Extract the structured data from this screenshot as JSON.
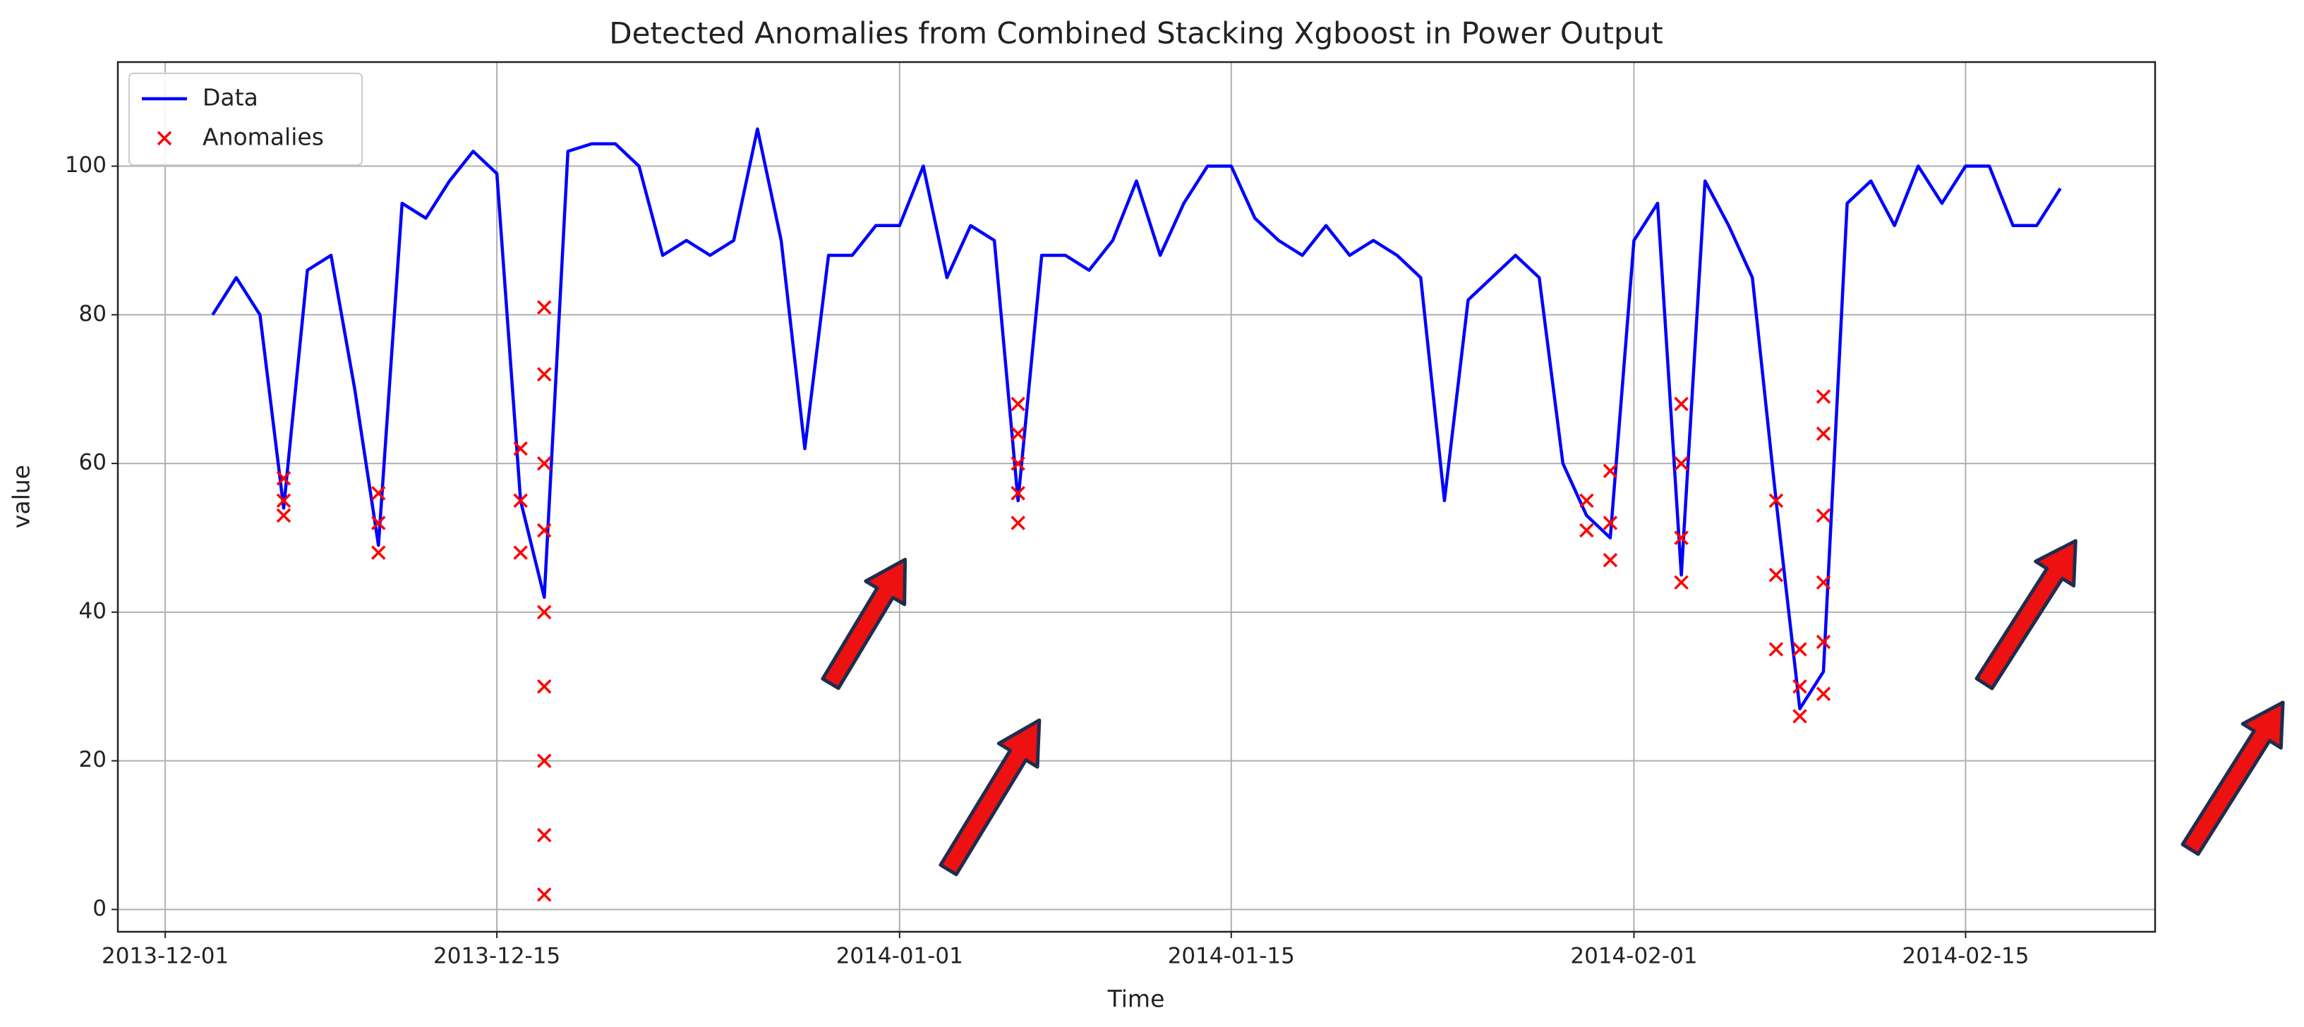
{
  "chart_data": {
    "type": "line",
    "title": "Detected Anomalies from Combined Stacking Xgboost in Power Output",
    "x_label": "Time",
    "y_label": "value",
    "xlim": [
      "2013-11-29",
      "2014-02-23"
    ],
    "xticks": [
      "2013-12-01",
      "2013-12-15",
      "2014-01-01",
      "2014-01-15",
      "2014-02-01",
      "2014-02-15"
    ],
    "ylim": [
      -3,
      114
    ],
    "yticks": [
      0,
      20,
      40,
      60,
      80,
      100
    ],
    "grid": true,
    "legend": "upper left",
    "series": [
      {
        "name": "Data",
        "type": "line",
        "color": "#0000ff",
        "x": [
          "2013-12-03",
          "2013-12-04",
          "2013-12-05",
          "2013-12-06",
          "2013-12-07",
          "2013-12-08",
          "2013-12-09",
          "2013-12-10",
          "2013-12-11",
          "2013-12-12",
          "2013-12-13",
          "2013-12-14",
          "2013-12-15",
          "2013-12-16",
          "2013-12-17",
          "2013-12-18",
          "2013-12-19",
          "2013-12-20",
          "2013-12-21",
          "2013-12-22",
          "2013-12-23",
          "2013-12-24",
          "2013-12-25",
          "2013-12-26",
          "2013-12-27",
          "2013-12-28",
          "2013-12-29",
          "2013-12-30",
          "2013-12-31",
          "2014-01-01",
          "2014-01-02",
          "2014-01-03",
          "2014-01-04",
          "2014-01-05",
          "2014-01-06",
          "2014-01-07",
          "2014-01-08",
          "2014-01-09",
          "2014-01-10",
          "2014-01-11",
          "2014-01-12",
          "2014-01-13",
          "2014-01-14",
          "2014-01-15",
          "2014-01-16",
          "2014-01-17",
          "2014-01-18",
          "2014-01-19",
          "2014-01-20",
          "2014-01-21",
          "2014-01-22",
          "2014-01-23",
          "2014-01-24",
          "2014-01-25",
          "2014-01-26",
          "2014-01-27",
          "2014-01-28",
          "2014-01-29",
          "2014-01-30",
          "2014-01-31",
          "2014-02-01",
          "2014-02-02",
          "2014-02-03",
          "2014-02-04",
          "2014-02-05",
          "2014-02-06",
          "2014-02-07",
          "2014-02-08",
          "2014-02-09",
          "2014-02-10",
          "2014-02-11",
          "2014-02-12",
          "2014-02-13",
          "2014-02-14",
          "2014-02-15",
          "2014-02-16",
          "2014-02-17",
          "2014-02-18",
          "2014-02-19"
        ],
        "values": [
          80,
          85,
          80,
          54,
          86,
          88,
          70,
          49,
          95,
          93,
          98,
          102,
          99,
          55,
          42,
          102,
          103,
          103,
          100,
          88,
          90,
          88,
          90,
          105,
          90,
          62,
          88,
          88,
          92,
          92,
          100,
          85,
          92,
          90,
          55,
          88,
          88,
          86,
          90,
          98,
          88,
          95,
          100,
          100,
          93,
          90,
          88,
          92,
          88,
          90,
          88,
          85,
          55,
          82,
          85,
          88,
          85,
          60,
          53,
          50,
          90,
          95,
          45,
          98,
          92,
          85,
          55,
          27,
          32,
          95,
          98,
          92,
          100,
          95,
          100,
          100,
          92,
          92,
          97
        ]
      },
      {
        "name": "Anomalies",
        "type": "scatter",
        "color": "#ff0000",
        "x": [
          "2013-12-06",
          "2013-12-06",
          "2013-12-06",
          "2013-12-10",
          "2013-12-10",
          "2013-12-10",
          "2013-12-16",
          "2013-12-16",
          "2013-12-16",
          "2013-12-17",
          "2013-12-17",
          "2013-12-17",
          "2013-12-17",
          "2013-12-17",
          "2013-12-17",
          "2013-12-17",
          "2013-12-17",
          "2013-12-17",
          "2014-01-06",
          "2014-01-06",
          "2014-01-06",
          "2014-01-06",
          "2014-01-06",
          "2014-01-30",
          "2014-01-30",
          "2014-01-31",
          "2014-01-31",
          "2014-01-31",
          "2014-02-03",
          "2014-02-03",
          "2014-02-03",
          "2014-02-03",
          "2014-02-07",
          "2014-02-07",
          "2014-02-07",
          "2014-02-08",
          "2014-02-08",
          "2014-02-08",
          "2014-02-09",
          "2014-02-09",
          "2014-02-09",
          "2014-02-09",
          "2014-02-09",
          "2014-02-09"
        ],
        "values": [
          53,
          55,
          58,
          48,
          52,
          56,
          62,
          55,
          48,
          2,
          10,
          20,
          30,
          40,
          51,
          60,
          72,
          81,
          52,
          56,
          60,
          64,
          68,
          51,
          55,
          47,
          52,
          59,
          44,
          50,
          60,
          68,
          55,
          45,
          35,
          26,
          30,
          35,
          29,
          36,
          44,
          53,
          64,
          69
        ]
      }
    ]
  }
}
